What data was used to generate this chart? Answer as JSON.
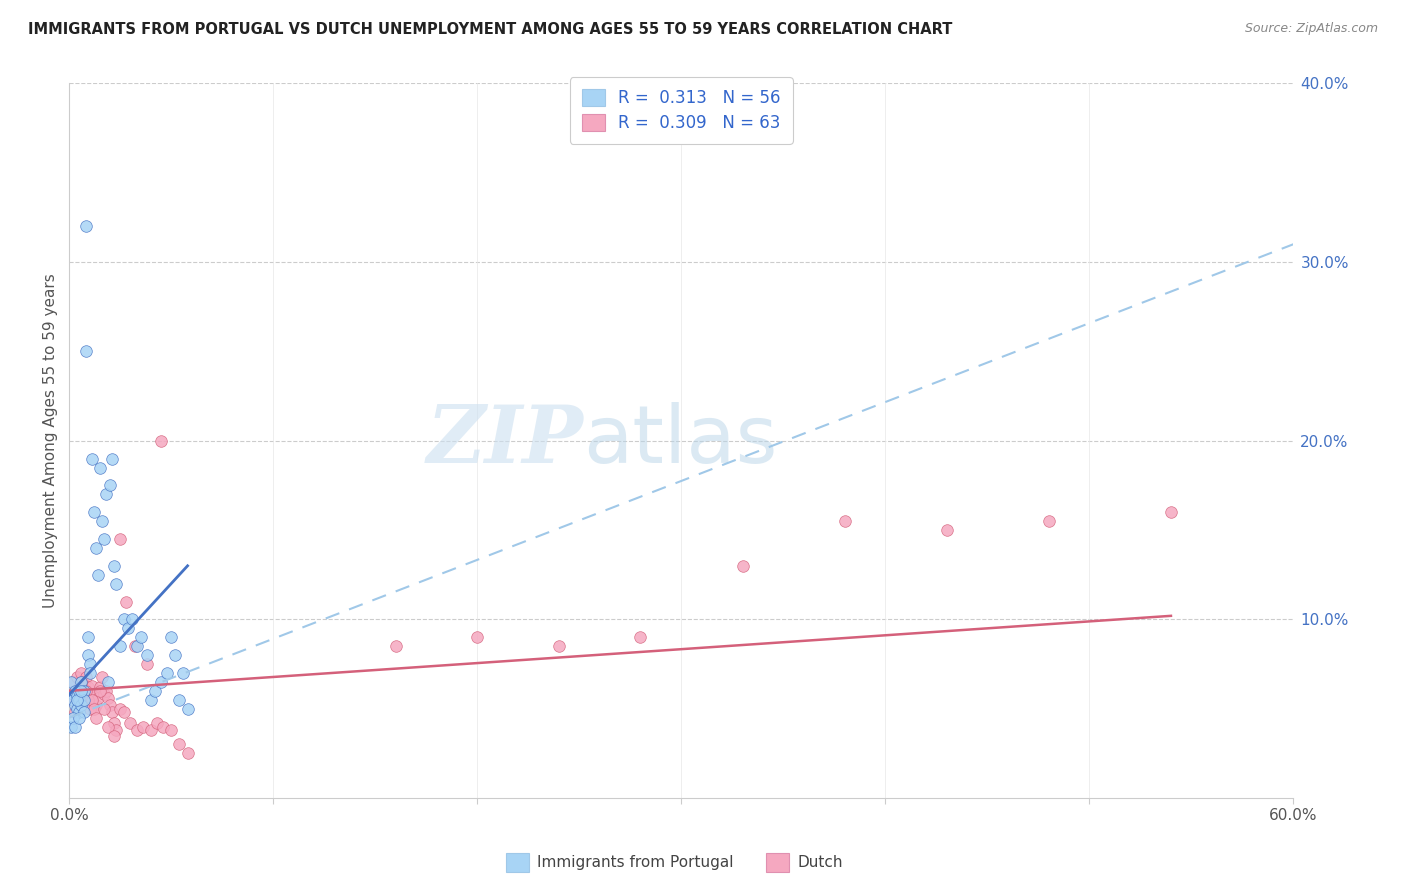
{
  "title": "IMMIGRANTS FROM PORTUGAL VS DUTCH UNEMPLOYMENT AMONG AGES 55 TO 59 YEARS CORRELATION CHART",
  "source": "Source: ZipAtlas.com",
  "ylabel": "Unemployment Among Ages 55 to 59 years",
  "xlim": [
    0,
    0.6
  ],
  "ylim": [
    0,
    0.4
  ],
  "ytick_right_values": [
    0.1,
    0.2,
    0.3,
    0.4
  ],
  "ytick_right_labels": [
    "10.0%",
    "20.0%",
    "30.0%",
    "40.0%"
  ],
  "legend_r1": "R =  0.313",
  "legend_n1": "N = 56",
  "legend_r2": "R =  0.309",
  "legend_n2": "N = 63",
  "legend_label1": "Immigrants from Portugal",
  "legend_label2": "Dutch",
  "color_portugal": "#a8d4f5",
  "color_dutch": "#f5a8c0",
  "color_portugal_line": "#4472c4",
  "color_dutch_line": "#d4607a",
  "watermark_zip": "ZIP",
  "watermark_atlas": "atlas",
  "portugal_x": [
    0.001,
    0.002,
    0.002,
    0.003,
    0.003,
    0.004,
    0.004,
    0.005,
    0.005,
    0.005,
    0.006,
    0.006,
    0.007,
    0.007,
    0.007,
    0.008,
    0.008,
    0.009,
    0.009,
    0.01,
    0.01,
    0.011,
    0.012,
    0.013,
    0.014,
    0.015,
    0.016,
    0.017,
    0.018,
    0.019,
    0.02,
    0.021,
    0.022,
    0.023,
    0.025,
    0.027,
    0.029,
    0.031,
    0.033,
    0.035,
    0.038,
    0.04,
    0.042,
    0.045,
    0.048,
    0.05,
    0.052,
    0.054,
    0.056,
    0.058,
    0.001,
    0.002,
    0.003,
    0.004,
    0.005,
    0.006
  ],
  "portugal_y": [
    0.065,
    0.058,
    0.055,
    0.06,
    0.052,
    0.057,
    0.05,
    0.06,
    0.055,
    0.048,
    0.065,
    0.052,
    0.06,
    0.055,
    0.048,
    0.32,
    0.25,
    0.09,
    0.08,
    0.075,
    0.07,
    0.19,
    0.16,
    0.14,
    0.125,
    0.185,
    0.155,
    0.145,
    0.17,
    0.065,
    0.175,
    0.19,
    0.13,
    0.12,
    0.085,
    0.1,
    0.095,
    0.1,
    0.085,
    0.09,
    0.08,
    0.055,
    0.06,
    0.065,
    0.07,
    0.09,
    0.08,
    0.055,
    0.07,
    0.05,
    0.04,
    0.045,
    0.04,
    0.055,
    0.045,
    0.06
  ],
  "dutch_x": [
    0.002,
    0.003,
    0.004,
    0.005,
    0.006,
    0.007,
    0.008,
    0.009,
    0.01,
    0.011,
    0.012,
    0.013,
    0.014,
    0.015,
    0.016,
    0.017,
    0.018,
    0.019,
    0.02,
    0.021,
    0.022,
    0.023,
    0.025,
    0.027,
    0.03,
    0.033,
    0.036,
    0.04,
    0.043,
    0.046,
    0.05,
    0.054,
    0.058,
    0.002,
    0.003,
    0.004,
    0.005,
    0.006,
    0.007,
    0.008,
    0.009,
    0.01,
    0.011,
    0.012,
    0.013,
    0.015,
    0.017,
    0.019,
    0.022,
    0.025,
    0.028,
    0.032,
    0.038,
    0.045,
    0.16,
    0.2,
    0.24,
    0.28,
    0.33,
    0.38,
    0.43,
    0.48,
    0.54
  ],
  "dutch_y": [
    0.065,
    0.06,
    0.068,
    0.062,
    0.07,
    0.064,
    0.068,
    0.062,
    0.058,
    0.063,
    0.058,
    0.052,
    0.056,
    0.062,
    0.068,
    0.058,
    0.06,
    0.056,
    0.052,
    0.048,
    0.042,
    0.038,
    0.05,
    0.048,
    0.042,
    0.038,
    0.04,
    0.038,
    0.042,
    0.04,
    0.038,
    0.03,
    0.025,
    0.055,
    0.048,
    0.052,
    0.058,
    0.065,
    0.055,
    0.06,
    0.055,
    0.05,
    0.055,
    0.05,
    0.045,
    0.06,
    0.05,
    0.04,
    0.035,
    0.145,
    0.11,
    0.085,
    0.075,
    0.2,
    0.085,
    0.09,
    0.085,
    0.09,
    0.13,
    0.155,
    0.15,
    0.155,
    0.16
  ],
  "portugal_trend_x": [
    0.0,
    0.058
  ],
  "portugal_trend_y": [
    0.058,
    0.13
  ],
  "dutch_trend_x": [
    0.0,
    0.54
  ],
  "dutch_trend_y": [
    0.06,
    0.102
  ],
  "dashed_trend_x": [
    0.0,
    0.6
  ],
  "dashed_trend_y": [
    0.045,
    0.31
  ]
}
